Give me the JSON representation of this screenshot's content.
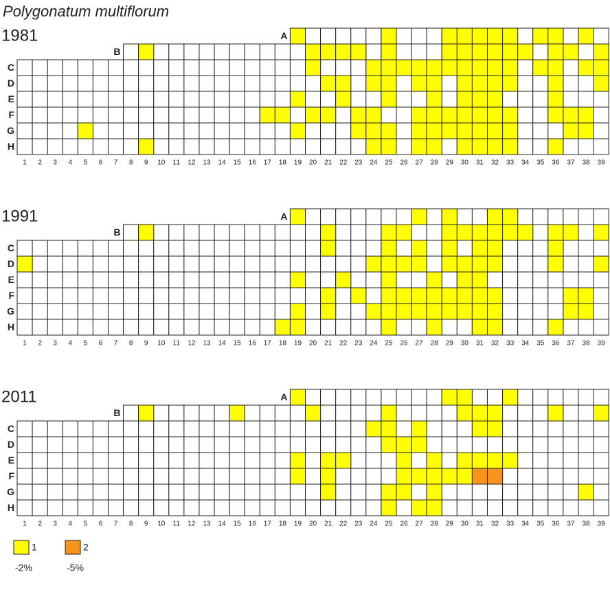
{
  "title": "Polygonatum multiflorum",
  "row_labels": [
    "A",
    "B",
    "C",
    "D",
    "E",
    "F",
    "G",
    "H"
  ],
  "columns": [
    "1",
    "2",
    "3",
    "4",
    "5",
    "6",
    "7",
    "8",
    "9",
    "10",
    "11",
    "12",
    "13",
    "14",
    "15",
    "16",
    "17",
    "18",
    "19",
    "20",
    "21",
    "22",
    "23",
    "24",
    "25",
    "26",
    "27",
    "28",
    "29",
    "30",
    "31",
    "32",
    "33",
    "34",
    "35",
    "36",
    "37",
    "38",
    "39"
  ],
  "panels": [
    {
      "year": "1981",
      "level1": {
        "A": [
          19,
          25,
          29,
          30,
          31,
          32,
          33,
          35,
          36,
          38
        ],
        "B": [
          9,
          20,
          21,
          22,
          23,
          25,
          29,
          30,
          31,
          32,
          33,
          34,
          36,
          37,
          39
        ],
        "C": [
          20,
          24,
          25,
          26,
          27,
          28,
          29,
          30,
          31,
          32,
          33,
          35,
          36,
          38,
          39
        ],
        "D": [
          21,
          22,
          24,
          25,
          27,
          28,
          30,
          31,
          32,
          33,
          36,
          39
        ],
        "E": [
          19,
          22,
          25,
          28,
          30,
          31,
          32,
          36
        ],
        "F": [
          17,
          18,
          20,
          21,
          23,
          24,
          27,
          28,
          29,
          30,
          31,
          32,
          33,
          36,
          37,
          38
        ],
        "G": [
          5,
          19,
          23,
          24,
          25,
          27,
          28,
          29,
          30,
          31,
          32,
          33,
          37,
          38
        ],
        "H": [
          9,
          24,
          25,
          27,
          28,
          30,
          31,
          32,
          33,
          36
        ]
      },
      "level2": {}
    },
    {
      "year": "1991",
      "level1": {
        "A": [
          19,
          27,
          29,
          32,
          33
        ],
        "B": [
          9,
          21,
          25,
          26,
          29,
          30,
          31,
          32,
          33,
          34,
          36,
          37,
          39
        ],
        "C": [
          21,
          25,
          27,
          29,
          31,
          32,
          36
        ],
        "D": [
          1,
          24,
          25,
          26,
          27,
          29,
          30,
          31,
          32,
          36,
          39
        ],
        "E": [
          19,
          22,
          25,
          28,
          30,
          31
        ],
        "F": [
          21,
          23,
          25,
          26,
          27,
          28,
          29,
          30,
          31,
          32,
          37,
          38
        ],
        "G": [
          19,
          21,
          24,
          25,
          26,
          27,
          28,
          29,
          30,
          31,
          32,
          37,
          38
        ],
        "H": [
          18,
          19,
          25,
          28,
          31,
          32,
          36
        ]
      },
      "level2": {}
    },
    {
      "year": "2011",
      "level1": {
        "A": [
          19,
          29,
          30,
          33
        ],
        "B": [
          9,
          15,
          20,
          25,
          30,
          31,
          32,
          36,
          39
        ],
        "C": [
          24,
          25,
          27,
          31,
          32
        ],
        "D": [
          25,
          26,
          27
        ],
        "E": [
          19,
          21,
          22,
          26,
          28,
          30,
          31,
          32,
          33
        ],
        "F": [
          19,
          21,
          26,
          27,
          28,
          29,
          30
        ],
        "G": [
          21,
          25,
          26,
          28,
          38
        ],
        "H": [
          25,
          27,
          28
        ]
      },
      "level2": {
        "F": [
          31,
          32
        ]
      }
    }
  ],
  "legend": [
    {
      "label": "1",
      "value": "-2%",
      "color": "#ffff00"
    },
    {
      "label": "2",
      "value": "-5%",
      "color": "#f7941d"
    }
  ]
}
